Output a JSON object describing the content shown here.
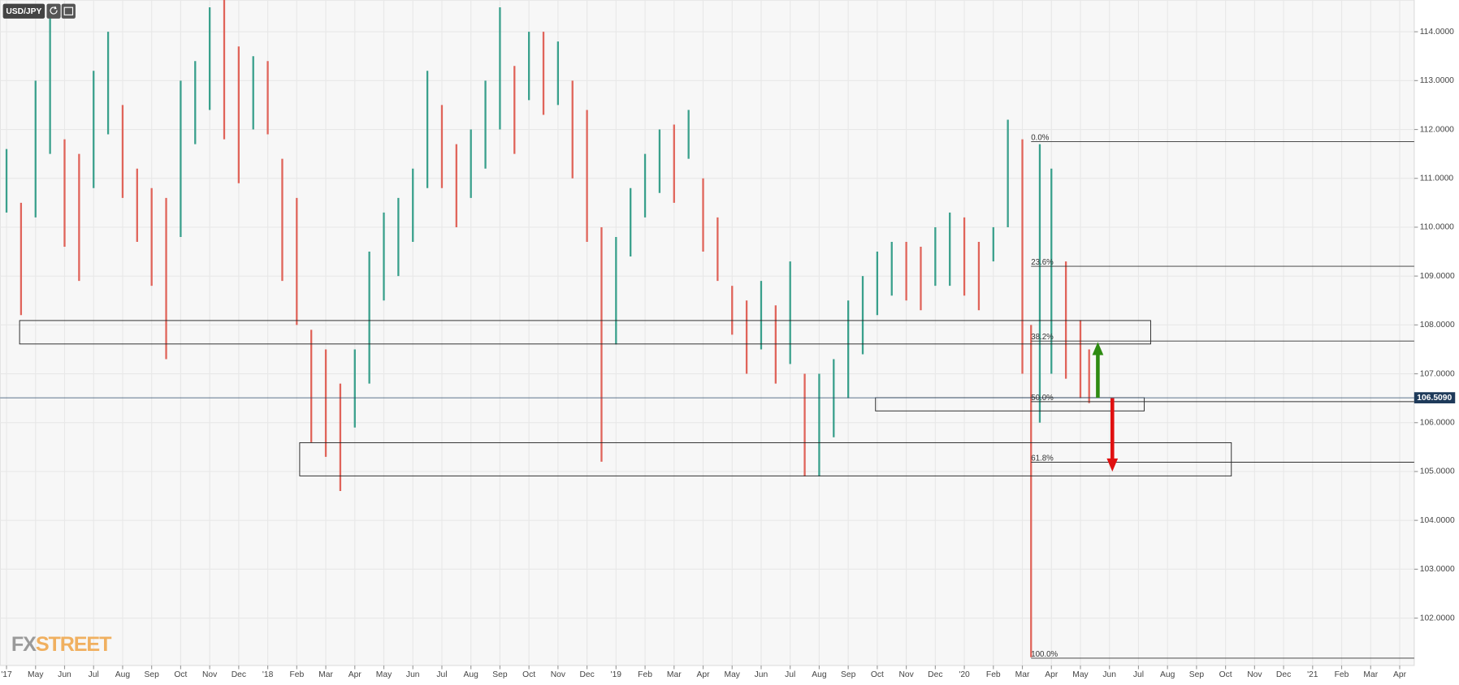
{
  "chart_data": {
    "type": "ohlc",
    "title": "USD/JPY",
    "up_color": "#3aa08c",
    "down_color": "#e0645a",
    "grid": true,
    "xlim": [
      -0.22,
      48.5
    ],
    "ylim": [
      101.03,
      114.65
    ],
    "xticks": [
      {
        "value": 0,
        "label": "'17"
      },
      {
        "value": 1,
        "label": "May"
      },
      {
        "value": 2,
        "label": "Jun"
      },
      {
        "value": 3,
        "label": "Jul"
      },
      {
        "value": 4,
        "label": "Aug"
      },
      {
        "value": 5,
        "label": "Sep"
      },
      {
        "value": 6,
        "label": "Oct"
      },
      {
        "value": 7,
        "label": "Nov"
      },
      {
        "value": 8,
        "label": "Dec"
      },
      {
        "value": 9,
        "label": "'18"
      },
      {
        "value": 10,
        "label": "Feb"
      },
      {
        "value": 11,
        "label": "Mar"
      },
      {
        "value": 12,
        "label": "Apr"
      },
      {
        "value": 13,
        "label": "May"
      },
      {
        "value": 14,
        "label": "Jun"
      },
      {
        "value": 15,
        "label": "Jul"
      },
      {
        "value": 16,
        "label": "Aug"
      },
      {
        "value": 17,
        "label": "Sep"
      },
      {
        "value": 18,
        "label": "Oct"
      },
      {
        "value": 19,
        "label": "Nov"
      },
      {
        "value": 20,
        "label": "Dec"
      },
      {
        "value": 21,
        "label": "'19"
      },
      {
        "value": 22,
        "label": "Feb"
      },
      {
        "value": 23,
        "label": "Mar"
      },
      {
        "value": 24,
        "label": "Apr"
      },
      {
        "value": 25,
        "label": "May"
      },
      {
        "value": 26,
        "label": "Jun"
      },
      {
        "value": 27,
        "label": "Jul"
      },
      {
        "value": 28,
        "label": "Aug"
      },
      {
        "value": 29,
        "label": "Sep"
      },
      {
        "value": 30,
        "label": "Oct"
      },
      {
        "value": 31,
        "label": "Nov"
      },
      {
        "value": 32,
        "label": "Dec"
      },
      {
        "value": 33,
        "label": "'20"
      },
      {
        "value": 34,
        "label": "Feb"
      },
      {
        "value": 35,
        "label": "Mar"
      },
      {
        "value": 36,
        "label": "Apr"
      },
      {
        "value": 37,
        "label": "May"
      },
      {
        "value": 38,
        "label": "Jun"
      },
      {
        "value": 39,
        "label": "Jul"
      },
      {
        "value": 40,
        "label": "Aug"
      },
      {
        "value": 41,
        "label": "Sep"
      },
      {
        "value": 42,
        "label": "Oct"
      },
      {
        "value": 43,
        "label": "Nov"
      },
      {
        "value": 44,
        "label": "Dec"
      },
      {
        "value": 45,
        "label": "'21"
      },
      {
        "value": 46,
        "label": "Feb"
      },
      {
        "value": 47,
        "label": "Mar"
      },
      {
        "value": 48,
        "label": "Apr"
      }
    ],
    "yticks": [
      {
        "value": 102,
        "label": "102.0000"
      },
      {
        "value": 103,
        "label": "103.0000"
      },
      {
        "value": 104,
        "label": "104.0000"
      },
      {
        "value": 105,
        "label": "105.0000"
      },
      {
        "value": 106,
        "label": "106.0000"
      },
      {
        "value": 107,
        "label": "107.0000"
      },
      {
        "value": 108,
        "label": "108.0000"
      },
      {
        "value": 109,
        "label": "109.0000"
      },
      {
        "value": 110,
        "label": "110.0000"
      },
      {
        "value": 111,
        "label": "111.0000"
      },
      {
        "value": 112,
        "label": "112.0000"
      },
      {
        "value": 113,
        "label": "113.0000"
      },
      {
        "value": 114,
        "label": "114.0000"
      }
    ],
    "x": [
      0,
      0.5,
      1,
      1.5,
      2,
      2.5,
      3,
      3.5,
      4,
      4.5,
      5,
      5.5,
      6,
      6.5,
      7,
      7.5,
      8,
      8.5,
      9,
      9.5,
      10,
      10.5,
      11,
      11.5,
      12,
      12.5,
      13,
      13.5,
      14,
      14.5,
      15,
      15.5,
      16,
      16.5,
      17,
      17.5,
      18,
      18.5,
      19,
      19.5,
      20,
      20.5,
      21,
      21.5,
      22,
      22.5,
      23,
      23.5,
      24,
      24.5,
      25,
      25.5,
      26,
      26.5,
      27,
      27.5,
      28,
      28.5,
      29,
      29.5,
      30,
      30.5,
      31,
      31.5,
      32,
      32.5,
      33,
      33.5,
      34,
      34.5,
      35,
      35.3,
      35.6,
      36,
      36.5,
      37,
      37.3
    ],
    "high": [
      111.6,
      110.5,
      113.0,
      114.3,
      111.8,
      111.5,
      113.2,
      114.0,
      112.5,
      111.2,
      110.8,
      110.6,
      113.0,
      113.4,
      114.5,
      114.7,
      113.7,
      113.5,
      113.4,
      111.4,
      110.6,
      107.9,
      107.5,
      106.8,
      107.5,
      109.5,
      110.3,
      110.6,
      111.2,
      113.2,
      112.5,
      111.7,
      112.0,
      113.0,
      114.5,
      113.3,
      114.0,
      114.0,
      113.8,
      113.0,
      112.4,
      110.0,
      109.8,
      110.8,
      111.5,
      112.0,
      112.1,
      112.4,
      111.0,
      110.2,
      108.8,
      108.5,
      108.9,
      108.4,
      109.3,
      107.0,
      107.0,
      107.3,
      108.5,
      109.0,
      109.5,
      109.7,
      109.7,
      109.6,
      110.0,
      110.3,
      110.2,
      109.7,
      110.0,
      112.2,
      111.8,
      108.0,
      111.7,
      111.2,
      109.3,
      108.1,
      107.5
    ],
    "low": [
      110.3,
      108.2,
      110.2,
      111.5,
      109.6,
      108.9,
      110.8,
      111.9,
      110.6,
      109.7,
      108.8,
      107.3,
      109.8,
      111.7,
      112.4,
      111.8,
      110.9,
      112.0,
      111.9,
      108.9,
      108.0,
      105.6,
      105.3,
      104.6,
      105.9,
      106.8,
      108.5,
      109.0,
      109.7,
      110.8,
      110.8,
      110.0,
      110.6,
      111.2,
      112.0,
      111.5,
      112.6,
      112.3,
      112.5,
      111.0,
      109.7,
      105.2,
      107.6,
      109.4,
      110.2,
      110.7,
      110.5,
      111.4,
      109.5,
      108.9,
      107.8,
      107.0,
      107.5,
      106.8,
      107.2,
      104.9,
      104.9,
      105.7,
      106.5,
      107.4,
      108.2,
      108.6,
      108.5,
      108.3,
      108.8,
      108.8,
      108.6,
      108.3,
      109.3,
      110.0,
      107.0,
      101.2,
      106.0,
      107.0,
      106.9,
      106.5,
      106.4
    ],
    "fib_start": 35.3,
    "fib_levels": [
      {
        "label": "0.0%",
        "value": 111.75
      },
      {
        "label": "23.6%",
        "value": 109.2
      },
      {
        "label": "38.2%",
        "value": 107.67
      },
      {
        "label": "50.0%",
        "value": 106.43
      },
      {
        "label": "61.8%",
        "value": 105.19
      },
      {
        "label": "100.0%",
        "value": 101.18
      }
    ],
    "zones": [
      {
        "x": [
          0.45,
          39.42
        ],
        "y": [
          107.61,
          108.09
        ]
      },
      {
        "x": [
          10.1,
          42.2
        ],
        "y": [
          104.91,
          105.59
        ]
      },
      {
        "x": [
          29.94,
          39.2
        ],
        "y": [
          106.24,
          106.51
        ]
      }
    ],
    "arrows": [
      {
        "x": 37.6,
        "from": 106.51,
        "to": 107.65,
        "color": "#2e8b12"
      },
      {
        "x": 38.1,
        "from": 106.5,
        "to": 105.0,
        "color": "#e01010"
      }
    ],
    "last_price": {
      "value": 106.509,
      "label": "106.5090"
    },
    "logo": [
      "FX",
      "STREET"
    ]
  }
}
